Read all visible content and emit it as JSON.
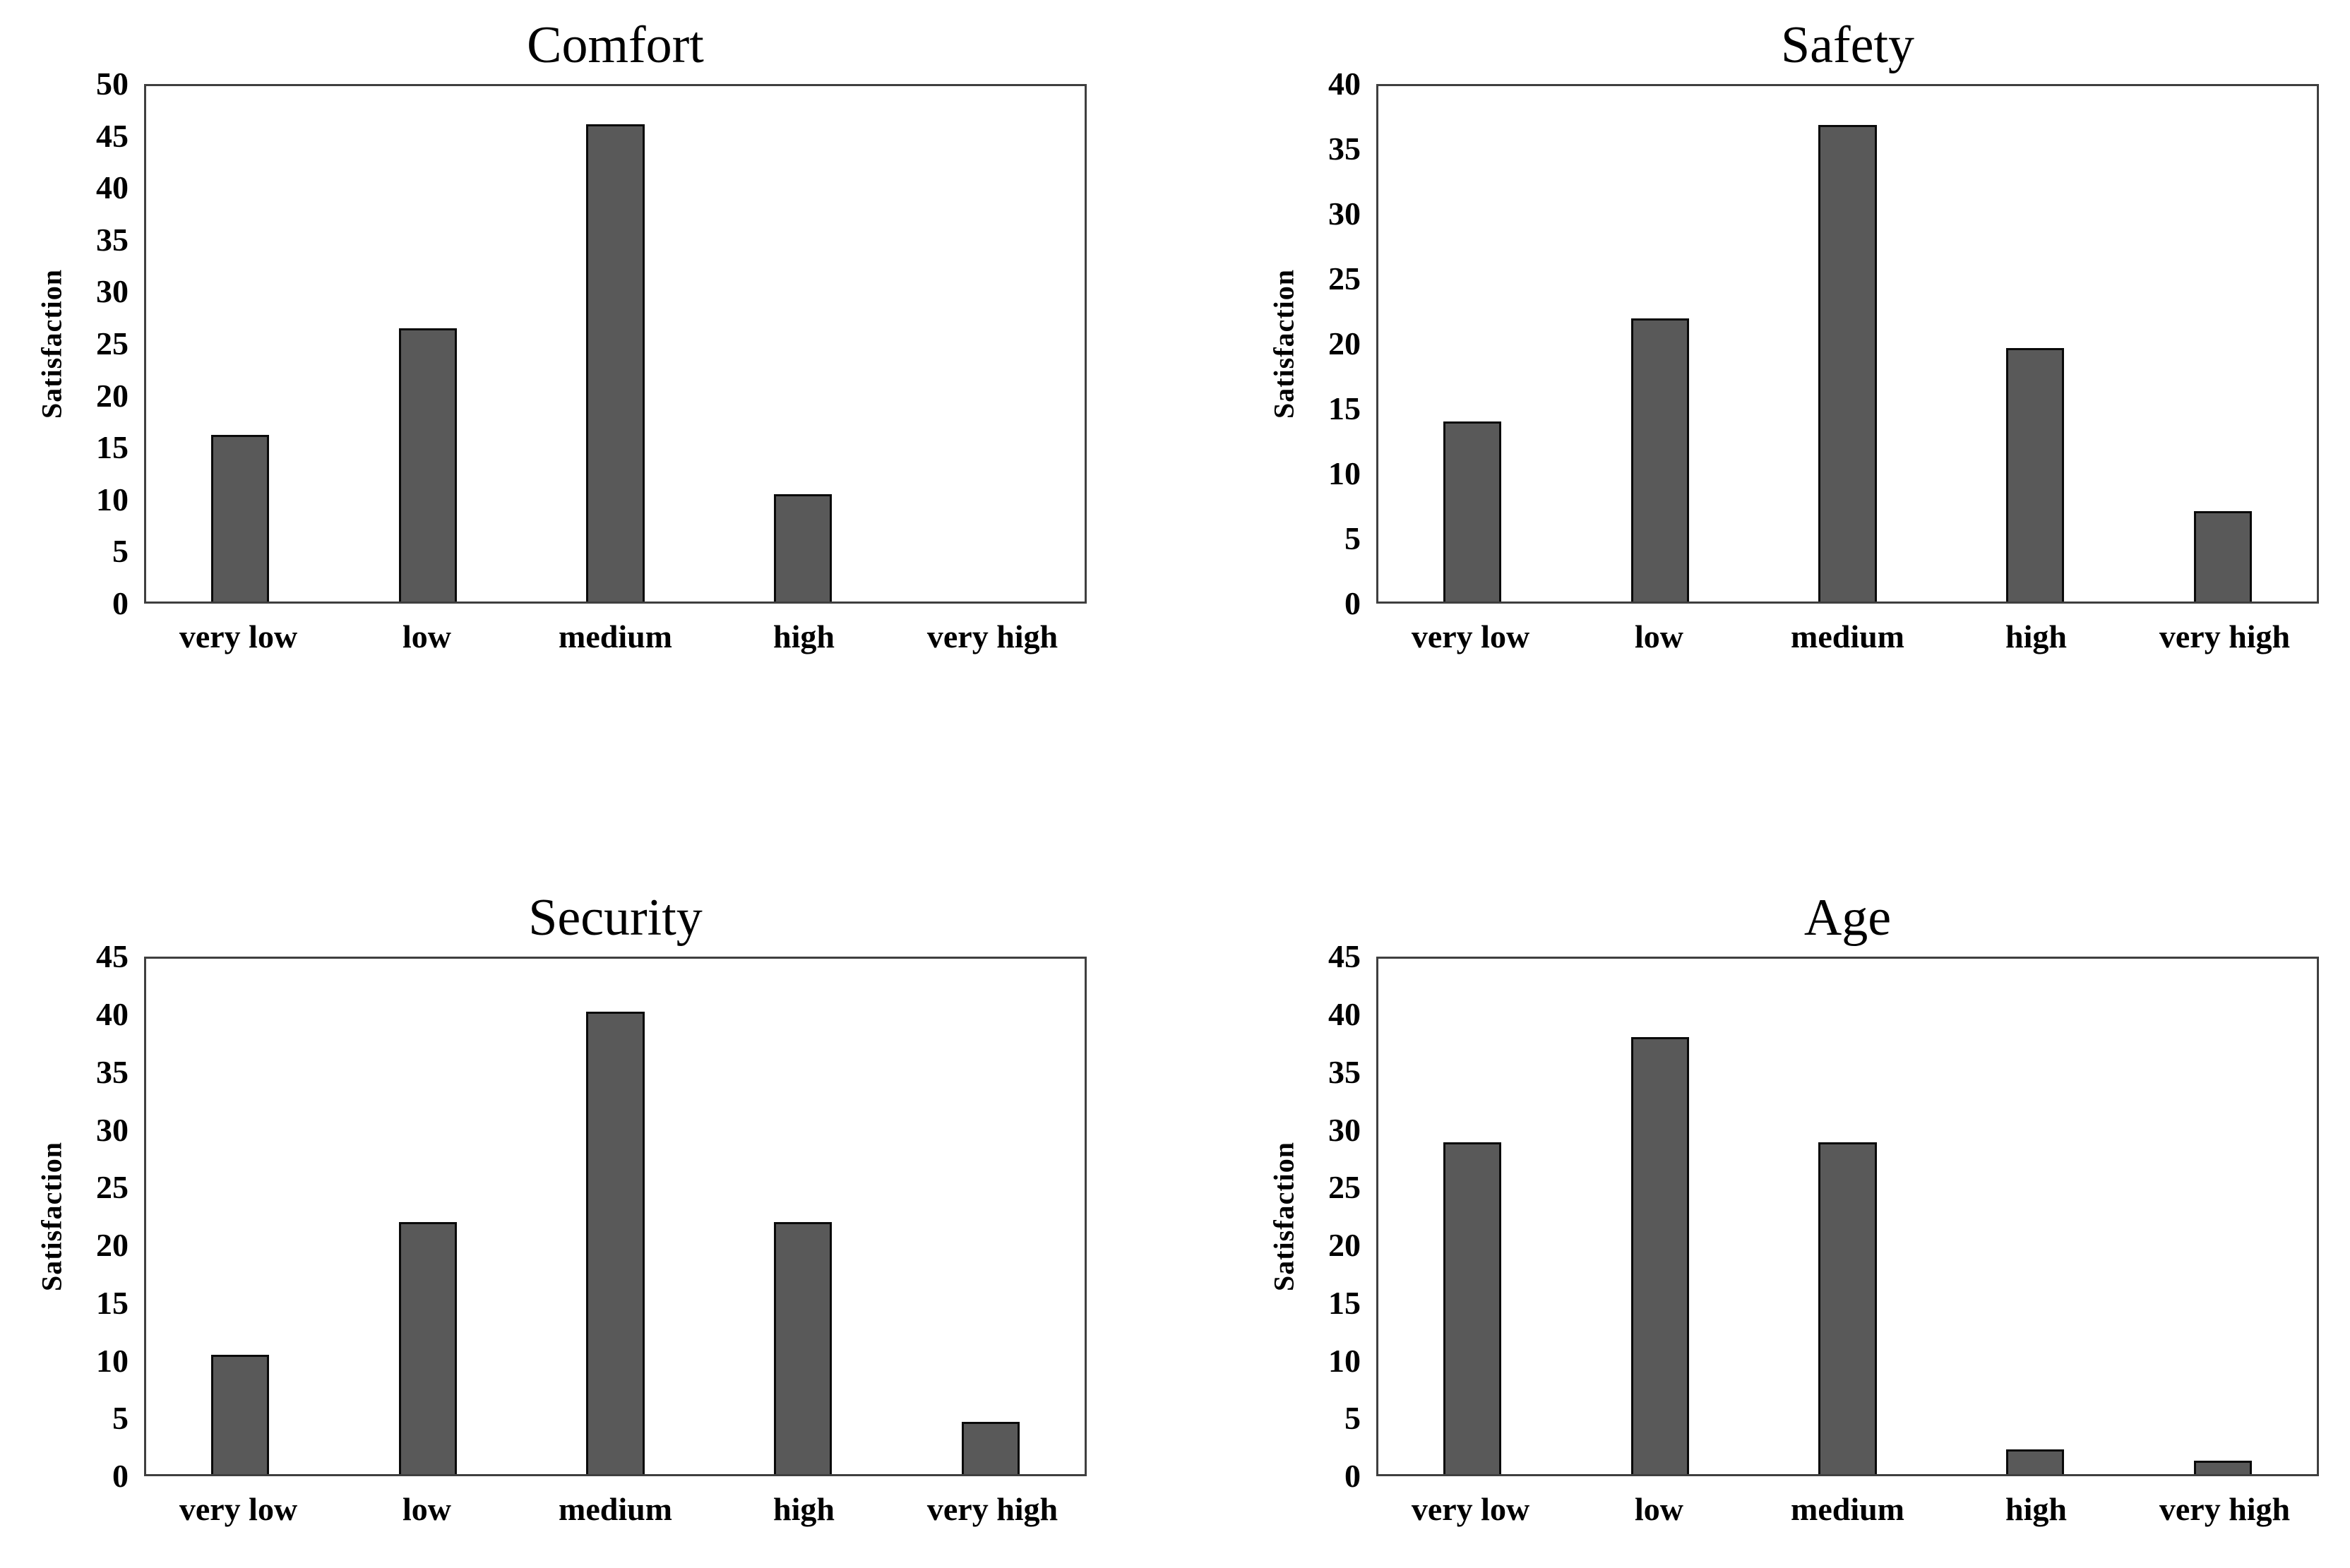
{
  "page": {
    "background": "#ffffff",
    "text_color": "#000000",
    "bar_fill": "#595959",
    "bar_border": "#0a0a0a",
    "plot_border": "#3f3f3f"
  },
  "chart_data": [
    {
      "type": "bar",
      "title": "Comfort",
      "ylabel": "Satisfaction",
      "xlabel": "",
      "categories": [
        "very low",
        "low",
        "medium",
        "high",
        "very high"
      ],
      "values": [
        16.2,
        26.5,
        46.3,
        10.4,
        0
      ],
      "ylim": [
        0,
        50
      ],
      "ystep": 5,
      "grid": false,
      "legend": false
    },
    {
      "type": "bar",
      "title": "Safety",
      "ylabel": "Satisfaction",
      "xlabel": "",
      "categories": [
        "very low",
        "low",
        "medium",
        "high",
        "very high"
      ],
      "values": [
        14,
        22,
        37,
        19.7,
        7
      ],
      "ylim": [
        0,
        40
      ],
      "ystep": 5,
      "grid": false,
      "legend": false
    },
    {
      "type": "bar",
      "title": "Security",
      "ylabel": "Satisfaction",
      "xlabel": "",
      "categories": [
        "very low",
        "low",
        "medium",
        "high",
        "very high"
      ],
      "values": [
        10.4,
        22,
        40.4,
        22,
        4.6
      ],
      "ylim": [
        0,
        45
      ],
      "ystep": 5,
      "grid": false,
      "legend": false
    },
    {
      "type": "bar",
      "title": "Age",
      "ylabel": "Satisfaction",
      "xlabel": "",
      "categories": [
        "very low",
        "low",
        "medium",
        "high",
        "very high"
      ],
      "values": [
        29,
        38.2,
        29,
        2.2,
        1.2
      ],
      "ylim": [
        0,
        45
      ],
      "ystep": 5,
      "grid": false,
      "legend": false
    }
  ]
}
